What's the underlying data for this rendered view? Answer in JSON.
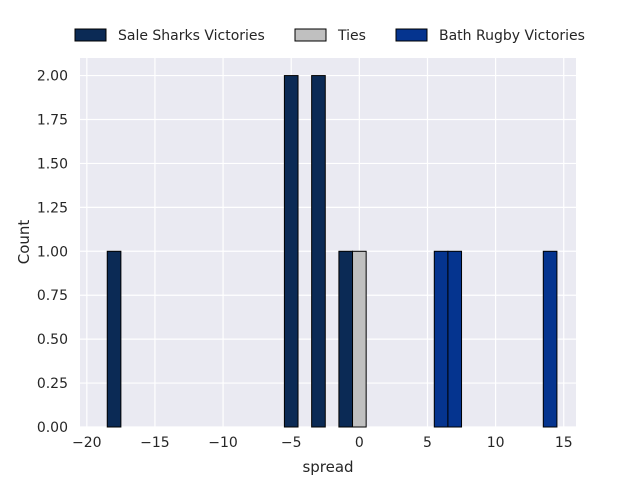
{
  "chart_data": {
    "type": "bar",
    "title": "",
    "xlabel": "spread",
    "ylabel": "Count",
    "xlim": [
      -20.5,
      15.9
    ],
    "ylim": [
      0,
      2.1
    ],
    "xticks": [
      -20,
      -15,
      -10,
      -5,
      0,
      5,
      10,
      15
    ],
    "xtick_labels": [
      "−20",
      "−15",
      "−10",
      "−5",
      "0",
      "5",
      "10",
      "15"
    ],
    "yticks": [
      0,
      0.25,
      0.5,
      0.75,
      1.0,
      1.25,
      1.5,
      1.75,
      2.0
    ],
    "ytick_labels": [
      "0.00",
      "0.25",
      "0.50",
      "0.75",
      "1.00",
      "1.25",
      "1.50",
      "1.75",
      "2.00"
    ],
    "grid": true,
    "legend_position": "top",
    "bin_width": 1,
    "series": [
      {
        "name": "Sale Sharks Victories",
        "color": "#0b2a55",
        "bins": [
          {
            "start": -18.5,
            "count": 1
          },
          {
            "start": -5.5,
            "count": 2
          },
          {
            "start": -3.5,
            "count": 2
          },
          {
            "start": -1.5,
            "count": 1
          }
        ]
      },
      {
        "name": "Ties",
        "color": "#c0c0c0",
        "bins": [
          {
            "start": -0.5,
            "count": 1
          }
        ]
      },
      {
        "name": "Bath Rugby Victories",
        "color": "#05348f",
        "bins": [
          {
            "start": 5.5,
            "count": 1
          },
          {
            "start": 6.5,
            "count": 1
          },
          {
            "start": 13.5,
            "count": 1
          }
        ]
      }
    ]
  }
}
